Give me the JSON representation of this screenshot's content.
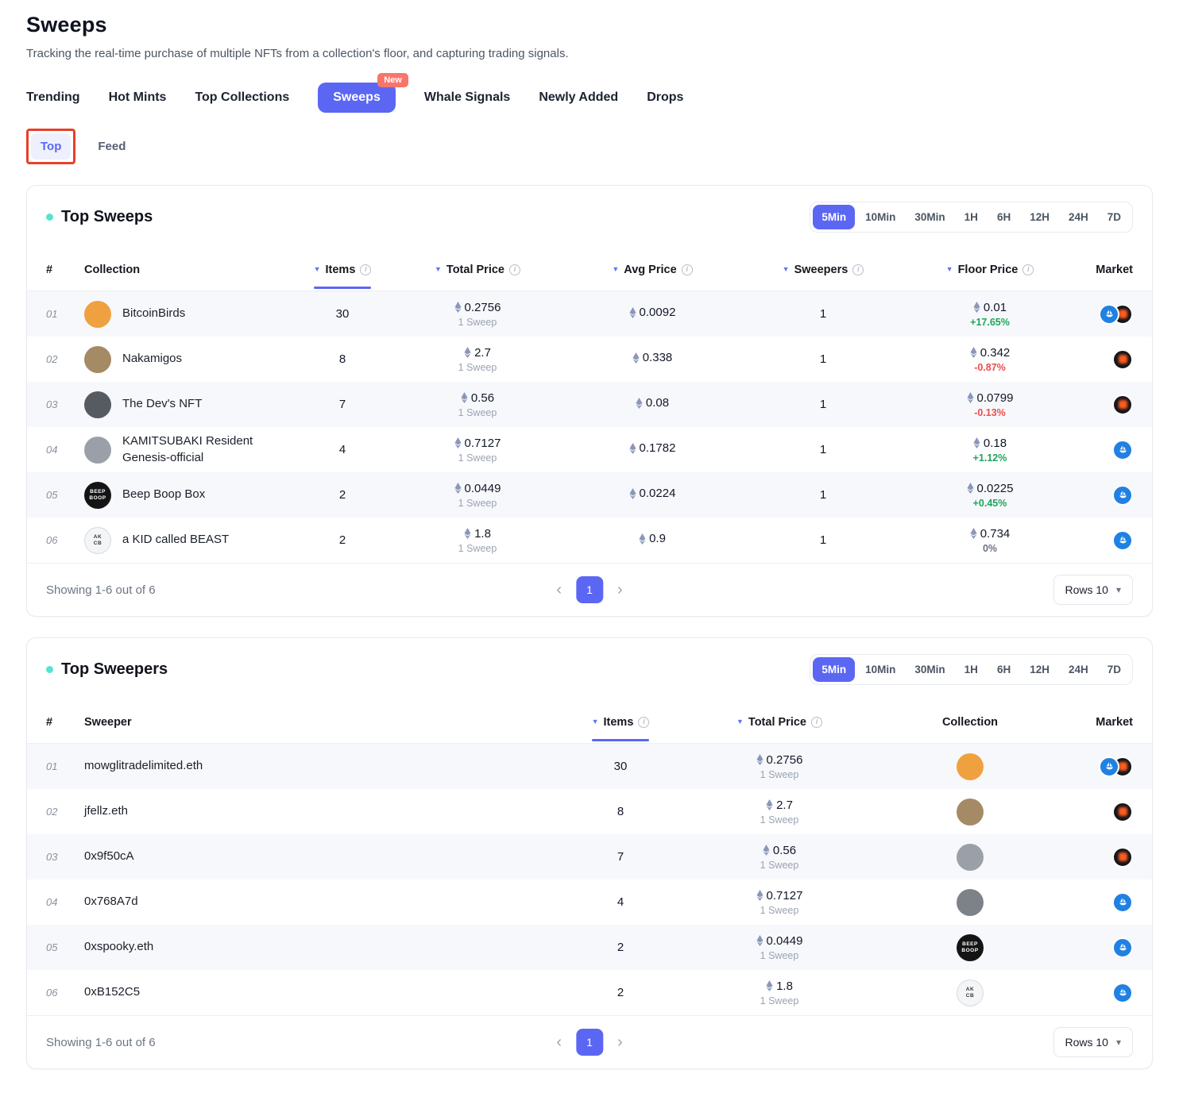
{
  "accent": "#5b67f3",
  "page": {
    "title": "Sweeps",
    "subtitle": "Tracking the real-time purchase of multiple NFTs from a collection's floor, and capturing trading signals."
  },
  "nav": {
    "tabs": [
      {
        "label": "Trending",
        "active": false
      },
      {
        "label": "Hot Mints",
        "active": false
      },
      {
        "label": "Top Collections",
        "active": false
      },
      {
        "label": "Sweeps",
        "active": true,
        "badge": "New"
      },
      {
        "label": "Whale Signals",
        "active": false
      },
      {
        "label": "Newly Added",
        "active": false
      },
      {
        "label": "Drops",
        "active": false
      }
    ],
    "subtabs": [
      {
        "label": "Top",
        "active": true,
        "annotated": true
      },
      {
        "label": "Feed",
        "active": false
      }
    ]
  },
  "timeframes": {
    "options": [
      "5Min",
      "10Min",
      "30Min",
      "1H",
      "6H",
      "12H",
      "24H",
      "7D"
    ],
    "active": "5Min"
  },
  "sweeps": {
    "title": "Top Sweeps",
    "columns": {
      "rank": "#",
      "collection": "Collection",
      "items": "Items",
      "total": "Total Price",
      "avg": "Avg Price",
      "sweepers": "Sweepers",
      "floor": "Floor Price",
      "market": "Market"
    },
    "rows": [
      {
        "rank": "01",
        "collection": "BitcoinBirds",
        "items": "30",
        "total_price": "0.2756",
        "total_sub": "1 Sweep",
        "avg_price": "0.0092",
        "sweepers": "1",
        "floor_price": "0.01",
        "floor_change": "+17.65%",
        "markets": [
          "opensea",
          "blur"
        ],
        "avatar": {
          "bg": "#f0a13f",
          "label": "",
          "fg": "#ffffff"
        }
      },
      {
        "rank": "02",
        "collection": "Nakamigos",
        "items": "8",
        "total_price": "2.7",
        "total_sub": "1 Sweep",
        "avg_price": "0.338",
        "sweepers": "1",
        "floor_price": "0.342",
        "floor_change": "-0.87%",
        "markets": [
          "blur"
        ],
        "avatar": {
          "bg": "#a58a66",
          "label": "",
          "fg": "#ffffff"
        }
      },
      {
        "rank": "03",
        "collection": "The Dev's NFT",
        "items": "7",
        "total_price": "0.56",
        "total_sub": "1 Sweep",
        "avg_price": "0.08",
        "sweepers": "1",
        "floor_price": "0.0799",
        "floor_change": "-0.13%",
        "markets": [
          "blur"
        ],
        "avatar": {
          "bg": "#565a61",
          "label": "",
          "fg": "#ffffff"
        }
      },
      {
        "rank": "04",
        "collection": "KAMITSUBAKI Resident Genesis-official",
        "items": "4",
        "total_price": "0.7127",
        "total_sub": "1 Sweep",
        "avg_price": "0.1782",
        "sweepers": "1",
        "floor_price": "0.18",
        "floor_change": "+1.12%",
        "markets": [
          "opensea"
        ],
        "avatar": {
          "bg": "#9ba0a8",
          "label": "",
          "fg": "#ffffff"
        }
      },
      {
        "rank": "05",
        "collection": "Beep Boop Box",
        "items": "2",
        "total_price": "0.0449",
        "total_sub": "1 Sweep",
        "avg_price": "0.0224",
        "sweepers": "1",
        "floor_price": "0.0225",
        "floor_change": "+0.45%",
        "markets": [
          "opensea"
        ],
        "avatar": {
          "bg": "#141414",
          "label": "BEEP\nBOOP",
          "fg": "#ffffff"
        }
      },
      {
        "rank": "06",
        "collection": "a KID called BEAST",
        "items": "2",
        "total_price": "1.8",
        "total_sub": "1 Sweep",
        "avg_price": "0.9",
        "sweepers": "1",
        "floor_price": "0.734",
        "floor_change": "0%",
        "markets": [
          "opensea"
        ],
        "avatar": {
          "bg": "#f4f5f7",
          "label": "AK\nCB",
          "fg": "#30343c",
          "border": true
        }
      }
    ],
    "footer": {
      "showing": "Showing 1-6 out of 6",
      "page": "1",
      "rows_label": "Rows 10"
    }
  },
  "sweepers_table": {
    "title": "Top Sweepers",
    "columns": {
      "rank": "#",
      "sweeper": "Sweeper",
      "items": "Items",
      "total": "Total Price",
      "collection": "Collection",
      "market": "Market"
    },
    "rows": [
      {
        "rank": "01",
        "sweeper": "mowglitradelimited.eth",
        "items": "30",
        "total_price": "0.2756",
        "total_sub": "1 Sweep",
        "markets": [
          "opensea",
          "blur"
        ],
        "avatar": {
          "bg": "#f0a13f",
          "label": "",
          "fg": "#ffffff"
        }
      },
      {
        "rank": "02",
        "sweeper": "jfellz.eth",
        "items": "8",
        "total_price": "2.7",
        "total_sub": "1 Sweep",
        "markets": [
          "blur"
        ],
        "avatar": {
          "bg": "#a58a66",
          "label": "",
          "fg": "#ffffff"
        }
      },
      {
        "rank": "03",
        "sweeper": "0x9f50cA",
        "items": "7",
        "total_price": "0.56",
        "total_sub": "1 Sweep",
        "markets": [
          "blur"
        ],
        "avatar": {
          "bg": "#9ba0a8",
          "label": "",
          "fg": "#ffffff"
        }
      },
      {
        "rank": "04",
        "sweeper": "0x768A7d",
        "items": "4",
        "total_price": "0.7127",
        "total_sub": "1 Sweep",
        "markets": [
          "opensea"
        ],
        "avatar": {
          "bg": "#7d8289",
          "label": "",
          "fg": "#ffffff"
        }
      },
      {
        "rank": "05",
        "sweeper": "0xspooky.eth",
        "items": "2",
        "total_price": "0.0449",
        "total_sub": "1 Sweep",
        "markets": [
          "opensea"
        ],
        "avatar": {
          "bg": "#141414",
          "label": "BEEP\nBOOP",
          "fg": "#ffffff"
        }
      },
      {
        "rank": "06",
        "sweeper": "0xB152C5",
        "items": "2",
        "total_price": "1.8",
        "total_sub": "1 Sweep",
        "markets": [
          "opensea"
        ],
        "avatar": {
          "bg": "#f4f5f7",
          "label": "AK\nCB",
          "fg": "#30343c",
          "border": true
        }
      }
    ],
    "footer": {
      "showing": "Showing 1-6 out of 6",
      "page": "1",
      "rows_label": "Rows 10"
    }
  }
}
